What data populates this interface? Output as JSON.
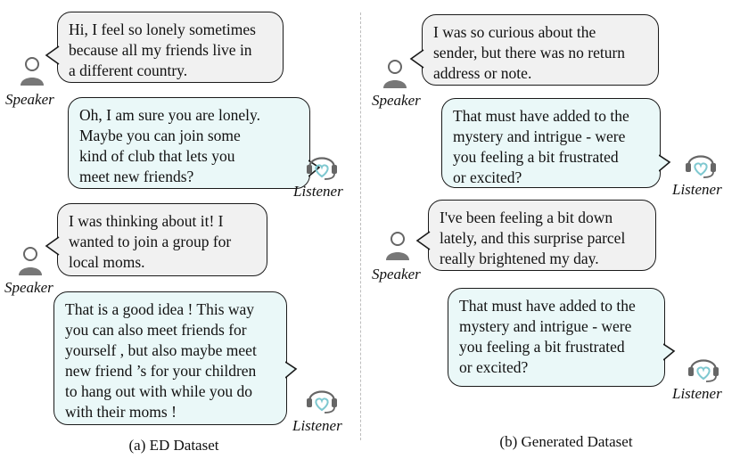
{
  "roles": {
    "speaker": "Speaker",
    "listener": "Listener"
  },
  "left": {
    "caption": "(a) ED Dataset",
    "turns": [
      {
        "role": "speaker",
        "text": "Hi, I feel so lonely sometimes\nbecause all my friends live in\na different country."
      },
      {
        "role": "listener",
        "text": "Oh, I am sure you are lonely.\nMaybe you can join some\nkind of club that lets you\nmeet new friends?"
      },
      {
        "role": "speaker",
        "text": "I was thinking about it! I\nwanted to join a group for\nlocal moms."
      },
      {
        "role": "listener",
        "text": "That is a good idea ! This way\nyou can also meet friends for\nyourself , but also maybe meet\nnew friend ’s for your children\nto hang out with while you do\nwith their moms !"
      }
    ]
  },
  "right": {
    "caption": "(b) Generated Dataset",
    "turns": [
      {
        "role": "speaker",
        "text": "I was so curious about the\nsender, but there was no return\naddress or note."
      },
      {
        "role": "listener",
        "text": "That must have added to the\nmystery and intrigue - were\nyou feeling a bit frustrated\nor excited?"
      },
      {
        "role": "speaker",
        "text": "I've been feeling a bit down\nlately, and this surprise parcel\nreally brightened my day."
      },
      {
        "role": "listener",
        "text": "That must have added to the\nmystery and intrigue - were\nyou feeling a bit frustrated\nor excited?"
      }
    ]
  },
  "colors": {
    "speaker_fill": "#f1f1f1",
    "listener_fill": "#eaf8f8",
    "heart": "#7ec8d0",
    "icon": "#666666"
  },
  "icons": {
    "speaker": "person-icon",
    "listener": "headset-heart-icon"
  }
}
